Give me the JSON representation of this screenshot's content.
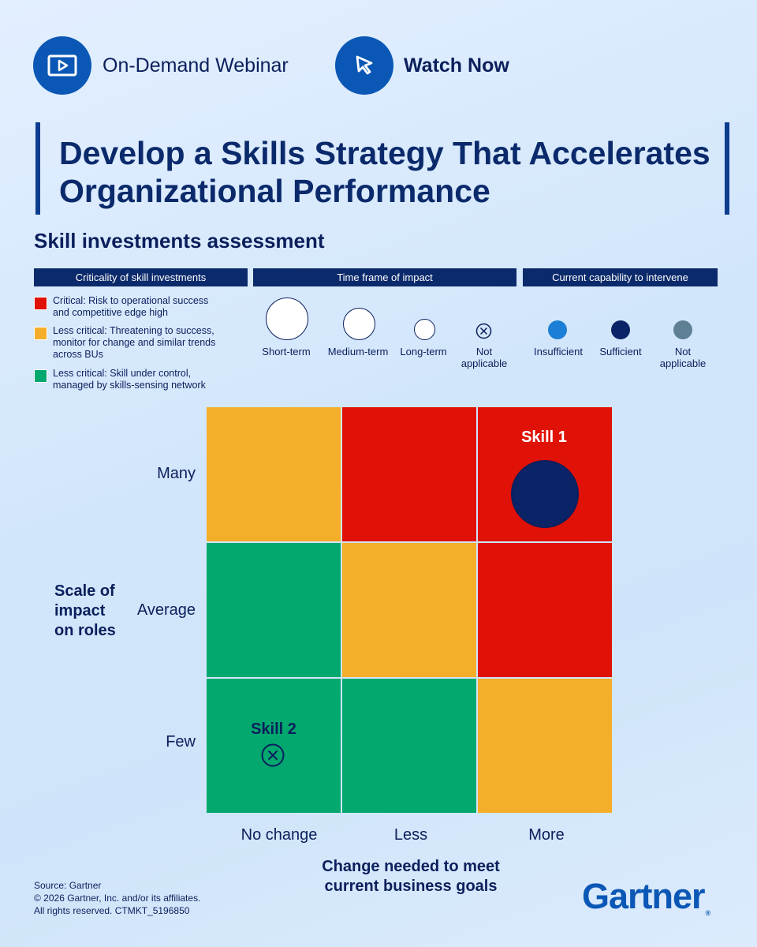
{
  "header": {
    "webinar_label": "On-Demand Webinar",
    "watch_label": "Watch Now",
    "icons": {
      "webinar": "video-play-icon",
      "watch": "cursor-pointer-icon"
    }
  },
  "title": {
    "line1": "Develop a Skills Strategy That Accelerates",
    "line2": "Organizational Performance"
  },
  "subtitle": "Skill investments assessment",
  "legend": {
    "criticality": {
      "heading": "Criticality of skill investments",
      "items": [
        {
          "line1": "Critical: Risk to operational success",
          "line2": "and competitive edge high",
          "line3": "",
          "color": "#e01106"
        },
        {
          "line1": "Less critical: Threatening to success,",
          "line2": "monitor for change and similar trends",
          "line3": "across BUs",
          "color": "#f5ae2a"
        },
        {
          "line1": "Less critical: Skill under control,",
          "line2": "managed by skills-sensing network",
          "line3": "",
          "color": "#02a86e"
        }
      ]
    },
    "timeframe": {
      "heading": "Time frame of impact",
      "items": [
        {
          "label1": "Short-term",
          "label2": ""
        },
        {
          "label1": "Medium-term",
          "label2": ""
        },
        {
          "label1": "Long-term",
          "label2": ""
        },
        {
          "label1": "Not",
          "label2": "applicable",
          "icon": "x-circle-icon"
        }
      ]
    },
    "capability": {
      "heading": "Current capability to intervene",
      "items": [
        {
          "label1": "Insufficient",
          "label2": "",
          "color": "#1c7fd6"
        },
        {
          "label1": "Sufficient",
          "label2": "",
          "color": "#0b2468"
        },
        {
          "label1": "Not",
          "label2": "applicable",
          "color": "#5e7f94"
        }
      ]
    }
  },
  "matrix": {
    "y_axis": {
      "line1": "Scale of",
      "line2": "impact",
      "line3": "on roles"
    },
    "rows": [
      "Many",
      "Average",
      "Few"
    ],
    "x_axis": {
      "line1": "Change needed to meet",
      "line2": "current business goals"
    },
    "columns": [
      "No change",
      "Less",
      "More"
    ],
    "colors": {
      "red": "#e01106",
      "amber": "#f5ae2a",
      "green": "#02a86e"
    },
    "cells": [
      [
        "amber",
        "red",
        "red"
      ],
      [
        "green",
        "amber",
        "red"
      ],
      [
        "green",
        "green",
        "amber"
      ]
    ],
    "skills": [
      {
        "label": "Skill 1",
        "row": "Many",
        "column": "More",
        "time_frame": "Short-term",
        "capability": "Sufficient"
      },
      {
        "label": "Skill 2",
        "row": "Few",
        "column": "No change",
        "time_frame": "Not applicable",
        "capability": "Not applicable"
      }
    ]
  },
  "footer": {
    "line1": "Source: Gartner",
    "line2": "© 2026 Gartner, Inc. and/or its affiliates.",
    "line3": "All rights reserved. CTMKT_5196850",
    "brand": "Gartner"
  }
}
